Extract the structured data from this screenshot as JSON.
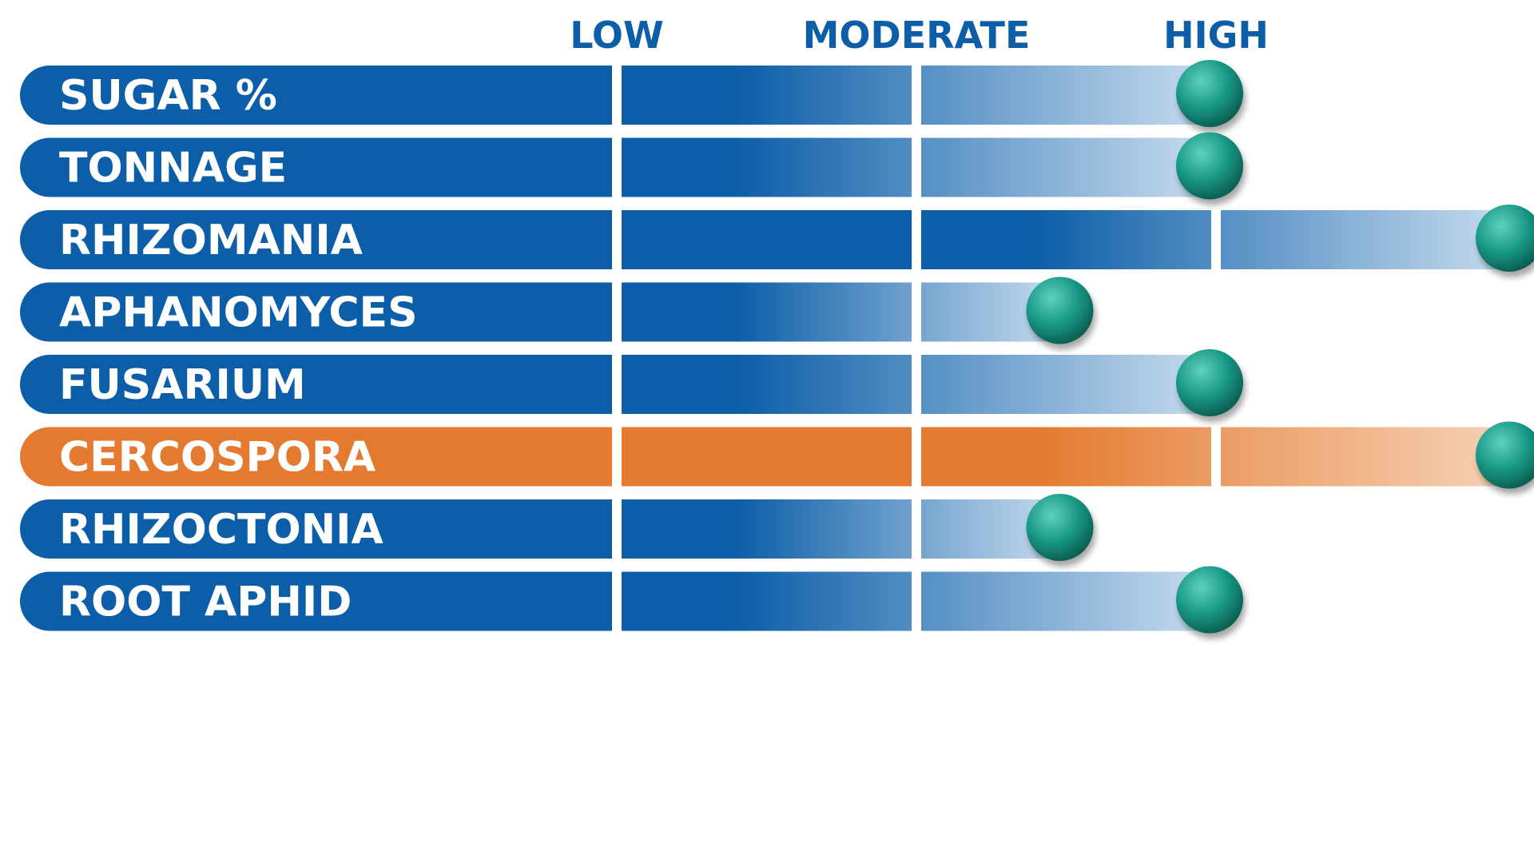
{
  "chart_data": {
    "type": "bar",
    "title": "",
    "xlabel": "",
    "ylabel": "",
    "scale_labels": [
      "LOW",
      "MODERATE",
      "HIGH"
    ],
    "scale_positions": [
      1,
      2,
      3
    ],
    "xlim": [
      0,
      4
    ],
    "grid": true,
    "categories": [
      "SUGAR %",
      "TONNAGE",
      "RHIZOMANIA",
      "APHANOMYCES",
      "FUSARIUM",
      "CERCOSPORA",
      "RHIZOCTONIA",
      "ROOT APHID"
    ],
    "values": [
      3,
      3,
      4,
      2.5,
      3,
      4,
      2.5,
      3
    ],
    "highlight_category": "CERCOSPORA"
  },
  "colors": {
    "bar_blue": "#0c5ea8",
    "bar_blue_light": "#c9ddef",
    "bar_orange": "#e47a30",
    "bar_orange_light": "#f6d3b8",
    "scale_label": "#0c5ea8",
    "marker": "#1a9a88",
    "marker_highlight": "#5fd0bd",
    "marker_dark": "#0b5e50",
    "label_text": "#ffffff"
  },
  "icons": {
    "marker": "teal-ball-icon"
  }
}
